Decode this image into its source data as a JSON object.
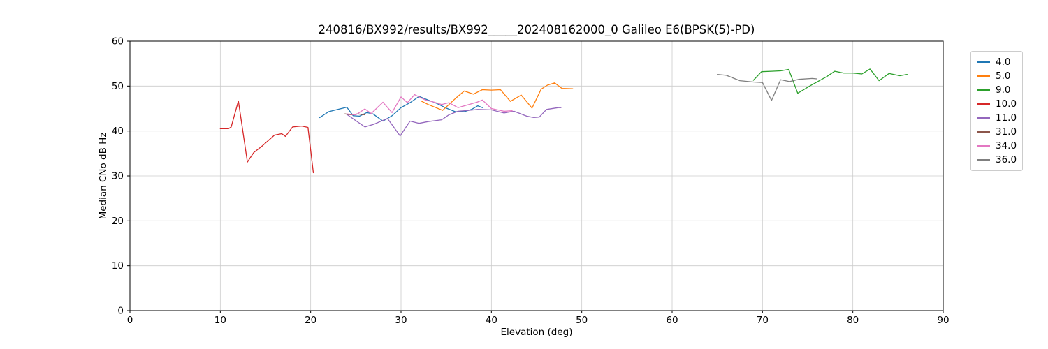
{
  "chart_data": {
    "type": "line",
    "title": "240816/BX992/results/BX992_____202408162000_0 Galileo E6(BPSK(5)-PD)",
    "xlabel": "Elevation (deg)",
    "ylabel": "Median CNo dB Hz",
    "xlim": [
      0,
      90
    ],
    "ylim": [
      0,
      60
    ],
    "xticks": [
      0,
      10,
      20,
      30,
      40,
      50,
      60,
      70,
      80,
      90
    ],
    "yticks": [
      0,
      10,
      20,
      30,
      40,
      50,
      60
    ],
    "grid": true,
    "grid_color": "#cccccc",
    "spine_color": "#000000",
    "legend_position": "outside-upper-right",
    "series": [
      {
        "name": "4.0",
        "color": "#1f77b4",
        "points": [
          [
            21,
            43.0
          ],
          [
            22,
            44.3
          ],
          [
            23,
            44.8
          ],
          [
            24,
            45.3
          ],
          [
            24.7,
            43.4
          ],
          [
            25.4,
            43.3
          ],
          [
            26.2,
            44.1
          ],
          [
            26.9,
            43.8
          ],
          [
            28,
            42.2
          ],
          [
            29,
            43.4
          ],
          [
            30,
            45.2
          ],
          [
            31,
            46.3
          ],
          [
            32,
            47.7
          ],
          [
            33,
            46.9
          ],
          [
            34,
            46.1
          ],
          [
            35,
            45.1
          ],
          [
            36,
            44.3
          ],
          [
            37,
            44.3
          ],
          [
            37.8,
            44.8
          ],
          [
            38.5,
            45.6
          ],
          [
            39,
            45.2
          ]
        ]
      },
      {
        "name": "5.0",
        "color": "#ff7f0e",
        "points": [
          [
            32.2,
            46.7
          ],
          [
            33,
            45.9
          ],
          [
            34.6,
            44.6
          ],
          [
            36,
            47.2
          ],
          [
            37,
            48.9
          ],
          [
            38,
            48.2
          ],
          [
            39,
            49.2
          ],
          [
            40,
            49.1
          ],
          [
            41,
            49.2
          ],
          [
            42.1,
            46.6
          ],
          [
            43.3,
            48.0
          ],
          [
            44.5,
            45.1
          ],
          [
            45.5,
            49.3
          ],
          [
            46.2,
            50.2
          ],
          [
            47,
            50.7
          ],
          [
            47.8,
            49.5
          ],
          [
            49,
            49.4
          ]
        ]
      },
      {
        "name": "9.0",
        "color": "#2ca02c",
        "points": [
          [
            69,
            51.3
          ],
          [
            69.9,
            53.2
          ],
          [
            71,
            53.3
          ],
          [
            72,
            53.4
          ],
          [
            72.9,
            53.7
          ],
          [
            73.9,
            48.4
          ],
          [
            75.3,
            50.1
          ],
          [
            77.1,
            52.1
          ],
          [
            78,
            53.3
          ],
          [
            79,
            52.9
          ],
          [
            80,
            52.9
          ],
          [
            81,
            52.7
          ],
          [
            81.9,
            53.8
          ],
          [
            82.9,
            51.2
          ],
          [
            84,
            52.8
          ],
          [
            85.2,
            52.3
          ],
          [
            86,
            52.6
          ]
        ]
      },
      {
        "name": "10.0",
        "color": "#d62728",
        "points": [
          [
            10,
            40.5
          ],
          [
            10.9,
            40.5
          ],
          [
            11.2,
            40.9
          ],
          [
            12,
            46.7
          ],
          [
            13,
            33.1
          ],
          [
            13.7,
            35.2
          ],
          [
            14.6,
            36.6
          ],
          [
            16,
            39.1
          ],
          [
            16.8,
            39.4
          ],
          [
            17.2,
            38.8
          ],
          [
            18,
            40.9
          ],
          [
            19,
            41.1
          ],
          [
            19.7,
            40.8
          ],
          [
            20.3,
            30.7
          ]
        ]
      },
      {
        "name": "11.0",
        "color": "#9467bd",
        "points": [
          [
            24,
            43.7
          ],
          [
            25,
            42.3
          ],
          [
            26,
            40.9
          ],
          [
            27,
            41.5
          ],
          [
            28.5,
            42.8
          ],
          [
            29.9,
            38.9
          ],
          [
            31,
            42.2
          ],
          [
            32,
            41.7
          ],
          [
            33,
            42.1
          ],
          [
            34.5,
            42.5
          ],
          [
            35.3,
            43.6
          ],
          [
            36.3,
            44.4
          ],
          [
            37.5,
            44.6
          ],
          [
            38.5,
            44.8
          ],
          [
            40,
            44.7
          ],
          [
            41.4,
            44.0
          ],
          [
            42.5,
            44.4
          ],
          [
            43.9,
            43.3
          ],
          [
            44.7,
            43.0
          ],
          [
            45.3,
            43.1
          ],
          [
            46.1,
            44.8
          ],
          [
            47.4,
            45.2
          ],
          [
            47.7,
            45.2
          ]
        ]
      },
      {
        "name": "31.0",
        "color": "#8c564b",
        "points": [
          [
            23.8,
            43.8
          ],
          [
            24.5,
            43.6
          ],
          [
            25.2,
            43.8
          ],
          [
            26,
            43.6
          ]
        ]
      },
      {
        "name": "34.0",
        "color": "#e377c2",
        "points": [
          [
            24,
            43.8
          ],
          [
            25,
            43.6
          ],
          [
            26,
            44.9
          ],
          [
            26.7,
            43.9
          ],
          [
            28,
            46.4
          ],
          [
            29,
            44.1
          ],
          [
            30,
            47.6
          ],
          [
            30.7,
            46.3
          ],
          [
            31.5,
            48.1
          ],
          [
            32.7,
            46.9
          ],
          [
            33.7,
            46.4
          ],
          [
            34.5,
            45.9
          ],
          [
            35.3,
            46.3
          ],
          [
            36.3,
            45.2
          ],
          [
            37,
            45.6
          ],
          [
            38.4,
            46.4
          ],
          [
            39,
            46.9
          ],
          [
            40,
            45.0
          ],
          [
            41.4,
            44.4
          ],
          [
            42.3,
            44.5
          ]
        ]
      },
      {
        "name": "36.0",
        "color": "#7f7f7f",
        "points": [
          [
            65,
            52.6
          ],
          [
            66,
            52.4
          ],
          [
            67.5,
            51.2
          ],
          [
            69,
            50.9
          ],
          [
            70,
            50.8
          ],
          [
            71,
            46.8
          ],
          [
            72,
            51.4
          ],
          [
            73,
            51.0
          ],
          [
            74,
            51.5
          ],
          [
            75.5,
            51.7
          ],
          [
            76,
            51.6
          ]
        ]
      }
    ]
  }
}
